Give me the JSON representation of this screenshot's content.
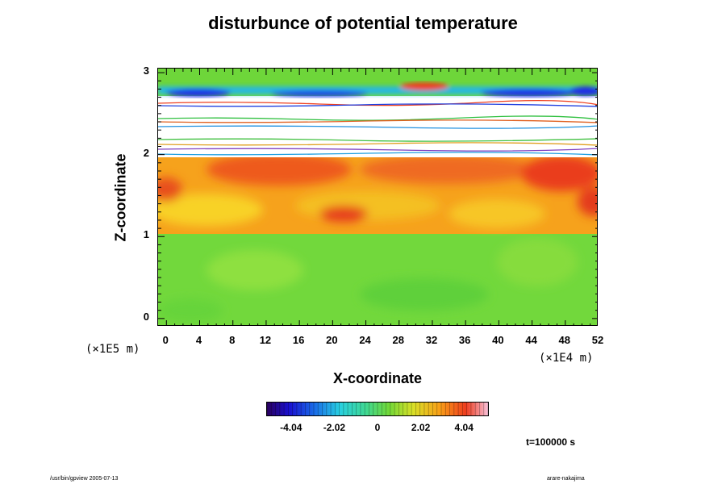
{
  "chart_data": {
    "type": "heatmap",
    "title": "disturbunce of potential temperature",
    "xlabel": "X-coordinate",
    "ylabel": "Z-coordinate",
    "x_unit": "(×1E4 m)",
    "y_unit": "(×1E5 m)",
    "xlim": [
      -1,
      52
    ],
    "ylim": [
      -0.1,
      3.05
    ],
    "x_ticks": [
      "0",
      "4",
      "8",
      "12",
      "16",
      "20",
      "24",
      "28",
      "32",
      "36",
      "40",
      "44",
      "48",
      "52"
    ],
    "y_ticks": [
      "0",
      "1",
      "2",
      "3"
    ],
    "colorbar": {
      "range": [
        -5.2,
        5.2
      ],
      "tick_labels": [
        "-4.04",
        "-2.02",
        "0",
        "2.02",
        "4.04"
      ],
      "tick_values": [
        -4.04,
        -2.02,
        0,
        2.02,
        4.04
      ]
    },
    "regions": [
      {
        "z_range": [
          -0.1,
          1.0
        ],
        "value": 0.2
      },
      {
        "z_range": [
          1.0,
          1.5
        ],
        "value": 2.8
      },
      {
        "z_range": [
          1.5,
          2.0
        ],
        "value": 3.8
      },
      {
        "z_range": [
          2.0,
          2.8
        ],
        "value": "out-of-range"
      },
      {
        "z_range": [
          2.8,
          3.05
        ],
        "value": 0.5
      }
    ],
    "time_label": "t=100000 s"
  },
  "footer": {
    "left": "/usr/bin/gpview 2005-07-13",
    "right": "arare-nakajima"
  },
  "colors": {
    "background": "#ffffff",
    "green": "#6fd83a",
    "orange": "#f8a018",
    "red": "#ee3c1e",
    "blue": "#1a2ee6"
  }
}
